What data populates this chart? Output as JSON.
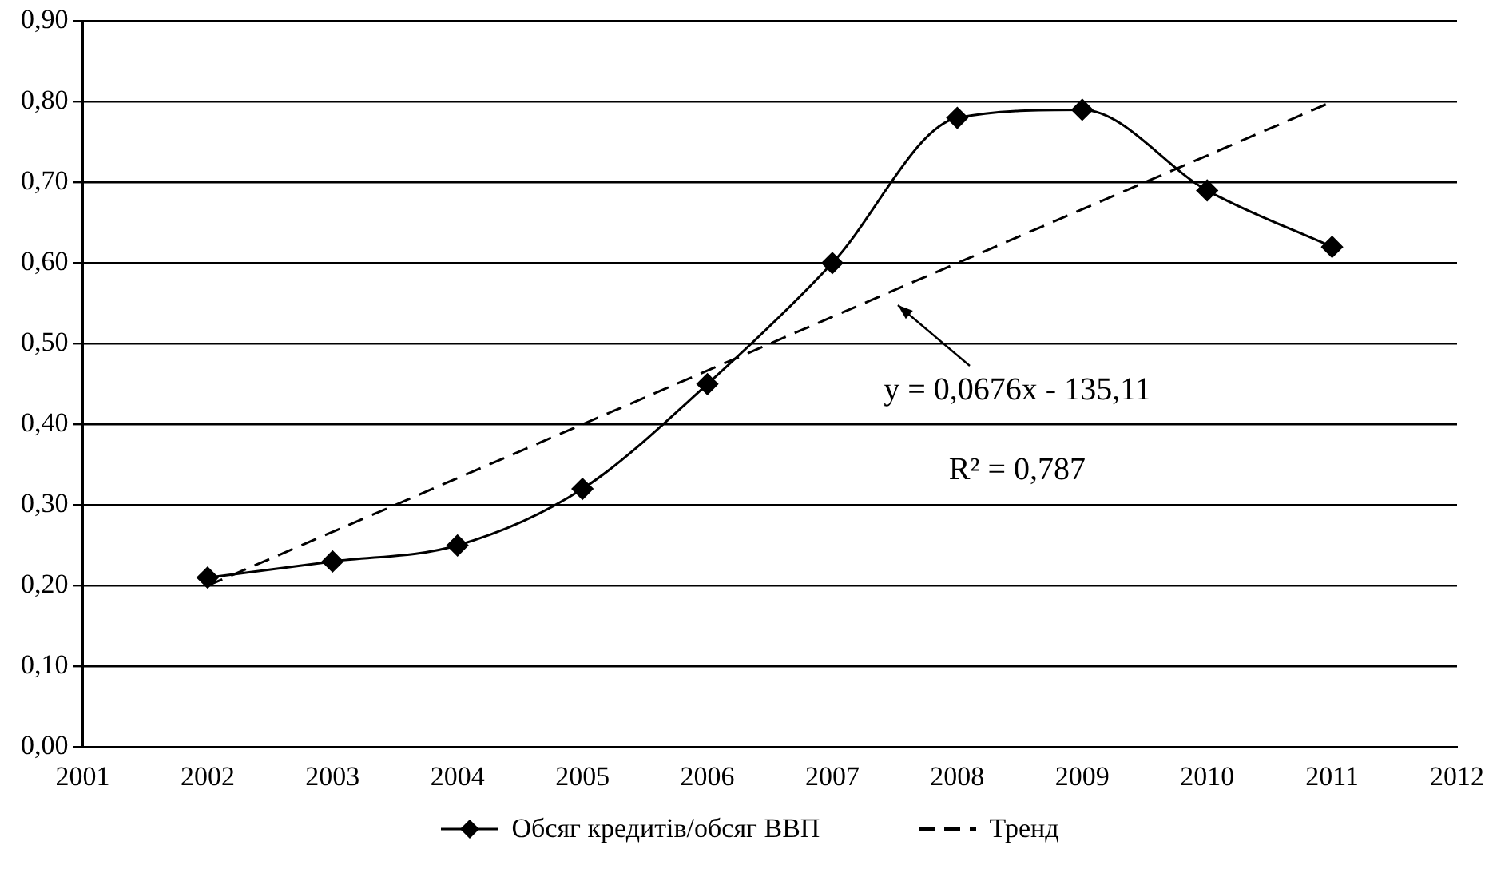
{
  "chart_data": {
    "type": "line",
    "xlim": [
      2001,
      2012
    ],
    "xticks": [
      2001,
      2002,
      2003,
      2004,
      2005,
      2006,
      2007,
      2008,
      2009,
      2010,
      2011,
      2012
    ],
    "ylim": [
      0,
      0.9
    ],
    "yticks": [
      {
        "value": 0,
        "label": "0,00"
      },
      {
        "value": 0.1,
        "label": "0,10"
      },
      {
        "value": 0.2,
        "label": "0,20"
      },
      {
        "value": 0.3,
        "label": "0,30"
      },
      {
        "value": 0.4,
        "label": "0,40"
      },
      {
        "value": 0.5,
        "label": "0,50"
      },
      {
        "value": 0.6,
        "label": "0,60"
      },
      {
        "value": 0.7,
        "label": "0,70"
      },
      {
        "value": 0.8,
        "label": "0,80"
      },
      {
        "value": 0.9,
        "label": "0,90"
      }
    ],
    "grid": "y",
    "legend": "bottom",
    "series": [
      {
        "name": "Обсяг кредитів/обсяг ВВП",
        "type": "line",
        "color": "#000000",
        "marker": "diamond",
        "line_style": "solid",
        "x": [
          2002,
          2003,
          2004,
          2005,
          2006,
          2007,
          2008,
          2009,
          2010,
          2011
        ],
        "values": [
          0.21,
          0.23,
          0.25,
          0.32,
          0.45,
          0.6,
          0.78,
          0.79,
          0.69,
          0.62
        ]
      },
      {
        "name": "Тренд",
        "type": "line",
        "color": "#000000",
        "marker": "none",
        "line_style": "dashed",
        "x": [
          2002,
          2011
        ],
        "values": [
          0.2,
          0.8
        ]
      }
    ],
    "annotations": [
      "y = 0,0676x - 135,11",
      "R² = 0,787"
    ]
  }
}
